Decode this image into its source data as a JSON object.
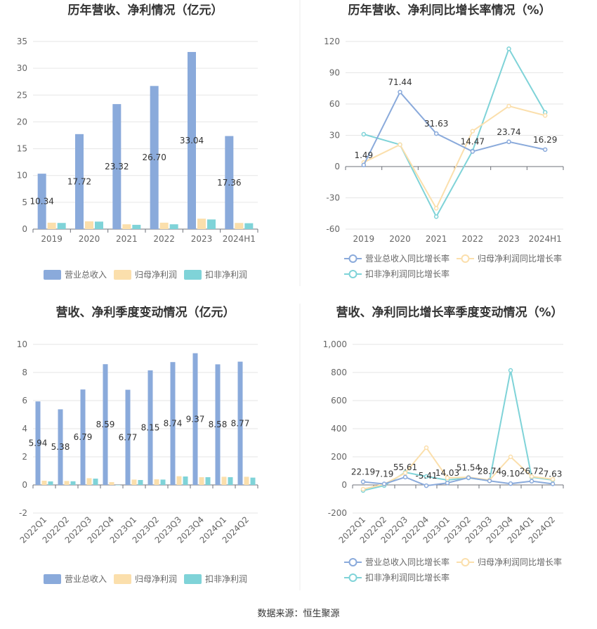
{
  "colors": {
    "revenue": "#8aaadb",
    "net_profit": "#fbdfac",
    "deducted_profit": "#7fd3d8"
  },
  "footer": "数据来源：恒生聚源",
  "chart_data": [
    {
      "id": "annual_amount",
      "type": "bar",
      "title": "历年营收、净利情况（亿元）",
      "categories": [
        "2019",
        "2020",
        "2021",
        "2022",
        "2023",
        "2024H1"
      ],
      "ylim": [
        0,
        35
      ],
      "yticks": [
        0,
        5,
        10,
        15,
        20,
        25,
        30,
        35
      ],
      "grid": true,
      "legend_position": "bottom",
      "series": [
        {
          "name": "营业总收入",
          "values": [
            10.34,
            17.72,
            23.32,
            26.7,
            33.04,
            17.36
          ],
          "labels": [
            "10.34",
            "17.72",
            "23.32",
            "26.70",
            "33.04",
            "17.36"
          ]
        },
        {
          "name": "归母净利润",
          "values": [
            1.2,
            1.45,
            0.9,
            1.2,
            1.95,
            1.15
          ]
        },
        {
          "name": "扣非净利润",
          "values": [
            1.15,
            1.4,
            0.8,
            0.9,
            1.8,
            1.1
          ]
        }
      ]
    },
    {
      "id": "annual_growth",
      "type": "line",
      "title": "历年营收、净利同比增长率情况（%）",
      "categories": [
        "2019",
        "2020",
        "2021",
        "2022",
        "2023",
        "2024H1"
      ],
      "ylim": [
        -60,
        120
      ],
      "yticks": [
        -60,
        -30,
        0,
        30,
        60,
        90,
        120
      ],
      "grid": true,
      "legend_position": "bottom",
      "series": [
        {
          "name": "营业总收入同比增长率",
          "values": [
            1.49,
            71.44,
            31.63,
            14.47,
            23.74,
            16.29
          ],
          "labels": [
            "1.49",
            "71.44",
            "31.63",
            "14.47",
            "23.74",
            "16.29"
          ]
        },
        {
          "name": "归母净利润同比增长率",
          "values": [
            4,
            21,
            -40,
            34,
            58,
            49
          ]
        },
        {
          "name": "扣非净利润同比增长率",
          "values": [
            31,
            21,
            -48,
            15,
            113,
            52
          ]
        }
      ]
    },
    {
      "id": "quarterly_amount",
      "type": "bar",
      "title": "营收、净利季度变动情况（亿元）",
      "categories": [
        "2022Q1",
        "2022Q2",
        "2022Q3",
        "2022Q4",
        "2023Q1",
        "2023Q2",
        "2023Q3",
        "2023Q4",
        "2024Q1",
        "2024Q2"
      ],
      "ylim": [
        -2,
        10
      ],
      "yticks": [
        -2,
        0,
        2,
        4,
        6,
        8,
        10
      ],
      "grid": true,
      "legend_position": "bottom",
      "series": [
        {
          "name": "营业总收入",
          "values": [
            5.94,
            5.38,
            6.79,
            8.59,
            6.77,
            8.15,
            8.74,
            9.37,
            8.58,
            8.77
          ],
          "labels": [
            "5.94",
            "5.38",
            "6.79",
            "8.59",
            "6.77",
            "8.15",
            "8.74",
            "9.37",
            "8.58",
            "8.77"
          ]
        },
        {
          "name": "归母净利润",
          "values": [
            0.3,
            0.28,
            0.48,
            0.2,
            0.38,
            0.4,
            0.62,
            0.55,
            0.58,
            0.58
          ]
        },
        {
          "name": "扣非净利润",
          "values": [
            0.25,
            0.26,
            0.45,
            -0.02,
            0.35,
            0.38,
            0.6,
            0.55,
            0.55,
            0.52
          ]
        }
      ]
    },
    {
      "id": "quarterly_growth",
      "type": "line",
      "title": "营收、净利同比增长率季度变动情况（%）",
      "categories": [
        "2022Q1",
        "2022Q2",
        "2022Q3",
        "2022Q4",
        "2023Q1",
        "2023Q2",
        "2023Q3",
        "2023Q4",
        "2024Q1",
        "2024Q2"
      ],
      "ylim": [
        -200,
        1000
      ],
      "yticks": [
        -200,
        0,
        200,
        400,
        600,
        800,
        1000
      ],
      "ytick_labels": [
        "-200",
        "0",
        "200",
        "400",
        "600",
        "800",
        "1,000"
      ],
      "grid": true,
      "legend_position": "bottom",
      "series": [
        {
          "name": "营业总收入同比增长率",
          "values": [
            22.19,
            7.19,
            55.61,
            -5.41,
            14.03,
            51.54,
            28.74,
            9.1,
            26.72,
            7.63
          ],
          "labels": [
            "22.19",
            "7.19",
            "55.61",
            "-5.41",
            "14.03",
            "51.54",
            "28.74",
            "9.10",
            "26.72",
            "7.63"
          ]
        },
        {
          "name": "归母净利润同比增长率",
          "values": [
            -30,
            5,
            85,
            265,
            50,
            55,
            35,
            200,
            60,
            40
          ]
        },
        {
          "name": "扣非净利润同比增长率",
          "values": [
            -40,
            -5,
            90,
            60,
            35,
            50,
            30,
            815,
            55,
            35
          ]
        }
      ]
    }
  ]
}
